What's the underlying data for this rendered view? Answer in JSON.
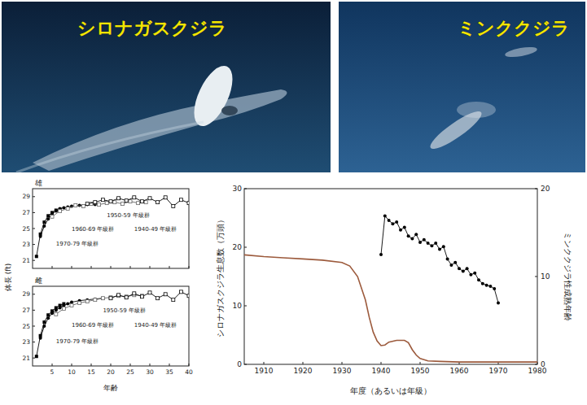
{
  "photos": [
    {
      "label": "シロナガスクジラ"
    },
    {
      "label": "ミンククジラ"
    }
  ],
  "chart_data": [
    {
      "type": "line",
      "title": "雄",
      "ylabel": "体長 (ft)",
      "grid": false,
      "tick_labels": "y",
      "xlim": [
        0,
        40
      ],
      "xticks": [
        5,
        10,
        15,
        20,
        25,
        30,
        35,
        40
      ],
      "ylim": [
        20,
        30
      ],
      "yticks": [
        21,
        23,
        25,
        27,
        29
      ],
      "series": [
        {
          "name": "1970-79 年級群",
          "color": "#000000",
          "marker": "square",
          "x": [
            1,
            2,
            3,
            4,
            5,
            6,
            7
          ],
          "values": [
            21.5,
            24.3,
            25.8,
            26.6,
            27.0,
            27.3,
            27.4
          ]
        },
        {
          "name": "1960-69 年級群",
          "color": "#000000",
          "marker": "circle",
          "x": [
            2,
            3,
            4,
            5,
            6,
            7,
            8,
            9,
            10,
            12,
            14,
            16
          ],
          "values": [
            24.0,
            25.3,
            26.2,
            26.8,
            27.2,
            27.5,
            27.6,
            27.7,
            27.8,
            27.9,
            28.0,
            28.0
          ]
        },
        {
          "name": "1950-59 年級群",
          "color": "#666666",
          "marker": "square-open",
          "x": [
            5,
            7,
            9,
            11,
            13,
            15,
            17,
            19,
            21,
            23,
            25,
            27,
            29
          ],
          "values": [
            26.5,
            27.2,
            27.5,
            27.9,
            27.8,
            28.1,
            28.0,
            28.2,
            28.3,
            28.1,
            28.4,
            28.2,
            28.3
          ]
        },
        {
          "name": "1940-49 年級群",
          "color": "#000000",
          "marker": "square-open",
          "x": [
            14,
            16,
            18,
            20,
            22,
            24,
            26,
            28,
            30,
            32,
            34,
            36,
            38,
            40
          ],
          "values": [
            28.1,
            28.3,
            28.6,
            28.4,
            28.8,
            28.5,
            28.9,
            28.4,
            28.8,
            28.3,
            28.9,
            27.8,
            28.6,
            28.2
          ]
        }
      ]
    },
    {
      "type": "line",
      "title": "雌",
      "xlabel": "年齢",
      "grid": false,
      "xlim": [
        0,
        40
      ],
      "xticks": [
        5,
        10,
        15,
        20,
        25,
        30,
        35,
        40
      ],
      "ylim": [
        20,
        30
      ],
      "yticks": [
        21,
        23,
        25,
        27,
        29
      ],
      "series": [
        {
          "name": "1970-79 年級群",
          "color": "#000000",
          "marker": "square",
          "x": [
            1,
            2,
            3,
            4,
            5,
            6,
            7,
            8
          ],
          "values": [
            21.2,
            23.8,
            25.5,
            26.4,
            26.9,
            27.3,
            27.6,
            27.8
          ]
        },
        {
          "name": "1960-69 年級群",
          "color": "#000000",
          "marker": "circle",
          "x": [
            2,
            3,
            4,
            5,
            6,
            7,
            8,
            9,
            10,
            12,
            14,
            16,
            18
          ],
          "values": [
            23.5,
            25.0,
            26.0,
            26.6,
            27.0,
            27.3,
            27.6,
            27.8,
            28.0,
            28.2,
            28.3,
            28.4,
            28.5
          ]
        },
        {
          "name": "1950-59 年級群",
          "color": "#666666",
          "marker": "square-open",
          "x": [
            6,
            8,
            10,
            12,
            14,
            16,
            18,
            20,
            22,
            24,
            26,
            28
          ],
          "values": [
            26.5,
            27.2,
            27.6,
            27.9,
            28.1,
            28.3,
            28.5,
            28.6,
            28.8,
            28.7,
            28.9,
            28.8
          ]
        },
        {
          "name": "1940-49 年級群",
          "color": "#000000",
          "marker": "square-open",
          "x": [
            20,
            22,
            24,
            26,
            28,
            30,
            32,
            34,
            36,
            38,
            40
          ],
          "values": [
            28.5,
            28.9,
            28.6,
            29.1,
            28.7,
            29.2,
            28.5,
            29.0,
            28.3,
            29.3,
            28.8
          ]
        }
      ]
    },
    {
      "type": "line",
      "xlabel": "年度（あるいは年級）",
      "ylabel": "シロナガスクジラ生息数（万頭）",
      "y2label": "ミンククジラ性成熟年齢",
      "grid": false,
      "xlim": [
        1905,
        1980
      ],
      "xticks": [
        1910,
        1920,
        1930,
        1940,
        1950,
        1960,
        1970,
        1980
      ],
      "ylim": [
        0,
        30
      ],
      "yticks": [
        0,
        10,
        20,
        30
      ],
      "y2lim": [
        0,
        20
      ],
      "y2ticks": [
        0,
        10,
        20
      ],
      "series": [
        {
          "color": "#9c5a3c",
          "marker": "none",
          "x": [
            1905,
            1910,
            1915,
            1920,
            1925,
            1930,
            1932,
            1934,
            1936,
            1937,
            1938,
            1939,
            1940,
            1941,
            1942,
            1944,
            1946,
            1947,
            1948,
            1949,
            1950,
            1952,
            1955,
            1960,
            1965,
            1970,
            1975,
            1980
          ],
          "values": [
            18.7,
            18.4,
            18.2,
            18.0,
            17.8,
            17.4,
            16.8,
            15.0,
            11.0,
            8.0,
            5.5,
            4.0,
            3.2,
            3.3,
            3.8,
            4.1,
            4.1,
            3.7,
            2.5,
            1.6,
            1.0,
            0.6,
            0.5,
            0.4,
            0.4,
            0.4,
            0.4,
            0.4
          ]
        },
        {
          "axis": "y2",
          "color": "#000000",
          "marker": "circle",
          "x": [
            1940,
            1941,
            1942,
            1943,
            1944,
            1945,
            1946,
            1947,
            1948,
            1949,
            1950,
            1951,
            1952,
            1953,
            1954,
            1955,
            1956,
            1957,
            1958,
            1959,
            1960,
            1961,
            1962,
            1963,
            1964,
            1965,
            1966,
            1967,
            1968,
            1969,
            1970
          ],
          "values": [
            12.5,
            16.9,
            16.4,
            16.0,
            16.2,
            15.3,
            15.6,
            14.6,
            14.3,
            14.8,
            13.9,
            14.2,
            13.8,
            13.5,
            13.8,
            13.1,
            13.4,
            12.0,
            11.3,
            11.6,
            10.9,
            10.6,
            10.9,
            10.2,
            10.4,
            9.6,
            9.2,
            9.0,
            8.9,
            8.6,
            7.0
          ]
        }
      ]
    }
  ]
}
